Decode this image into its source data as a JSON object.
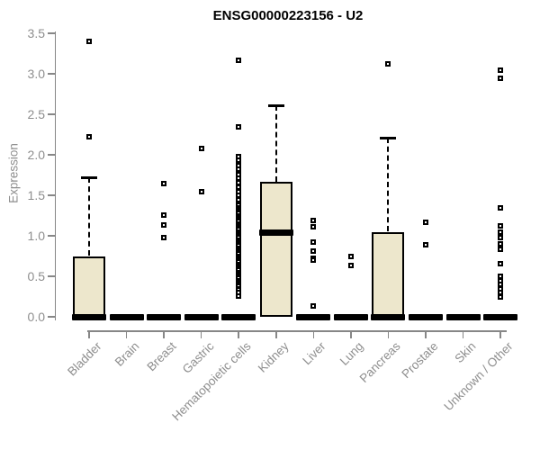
{
  "chart_data": {
    "type": "boxplot",
    "title": "ENSG00000223156 - U2",
    "ylabel": "Expression",
    "xlabel": "",
    "ylim": [
      0.0,
      3.5
    ],
    "yticks": [
      0.0,
      0.5,
      1.0,
      1.5,
      2.0,
      2.5,
      3.0,
      3.5
    ],
    "grid": false,
    "legend": "none",
    "categories": [
      "Bladder",
      "Brain",
      "Breast",
      "Gastric",
      "Hematopoietic cells",
      "Kidney",
      "Liver",
      "Lung",
      "Pancreas",
      "Prostate",
      "Skin",
      "Unknown / Other"
    ],
    "series": [
      {
        "category": "Bladder",
        "q1": 0,
        "median": 0,
        "q3": 0.75,
        "whisker_low": 0,
        "whisker_high": 1.72,
        "outliers": [
          3.4,
          2.22
        ]
      },
      {
        "category": "Brain",
        "q1": 0,
        "median": 0,
        "q3": 0,
        "whisker_low": 0,
        "whisker_high": 0,
        "outliers": []
      },
      {
        "category": "Breast",
        "q1": 0,
        "median": 0,
        "q3": 0,
        "whisker_low": 0,
        "whisker_high": 0,
        "outliers": [
          1.65,
          1.26,
          1.13,
          0.98
        ]
      },
      {
        "category": "Gastric",
        "q1": 0,
        "median": 0,
        "q3": 0,
        "whisker_low": 0,
        "whisker_high": 0,
        "outliers": [
          2.08,
          1.55
        ]
      },
      {
        "category": "Hematopoietic cells",
        "q1": 0,
        "median": 0,
        "q3": 0,
        "whisker_low": 0,
        "whisker_high": 0,
        "outliers": [
          3.17,
          2.35,
          1.98,
          1.93,
          1.87,
          1.82,
          1.76,
          1.71,
          1.66,
          1.6,
          1.55,
          1.5,
          1.45,
          1.4,
          1.375,
          1.35,
          1.325,
          1.3,
          1.275,
          1.25,
          1.225,
          1.2,
          1.175,
          1.15,
          1.125,
          1.1,
          1.075,
          1.05,
          1.025,
          1.0,
          0.975,
          0.95,
          0.925,
          0.9,
          0.875,
          0.85,
          0.825,
          0.8,
          0.775,
          0.75,
          0.725,
          0.7,
          0.675,
          0.65,
          0.625,
          0.6,
          0.575,
          0.55,
          0.525,
          0.5,
          0.475,
          0.45,
          0.425,
          0.4,
          0.375,
          0.35,
          0.33,
          0.3,
          0.26
        ]
      },
      {
        "category": "Kidney",
        "q1": 0,
        "median": 1.04,
        "q3": 1.67,
        "whisker_low": 0,
        "whisker_high": 2.61,
        "outliers": []
      },
      {
        "category": "Liver",
        "q1": 0,
        "median": 0,
        "q3": 0,
        "whisker_low": 0,
        "whisker_high": 0,
        "outliers": [
          1.19,
          1.11,
          0.92,
          0.81,
          0.72,
          0.7,
          0.13
        ]
      },
      {
        "category": "Lung",
        "q1": 0,
        "median": 0,
        "q3": 0,
        "whisker_low": 0,
        "whisker_high": 0,
        "outliers": [
          0.74,
          0.63
        ]
      },
      {
        "category": "Pancreas",
        "q1": 0,
        "median": 0,
        "q3": 1.05,
        "whisker_low": 0,
        "whisker_high": 2.21,
        "outliers": [
          3.12
        ]
      },
      {
        "category": "Prostate",
        "q1": 0,
        "median": 0,
        "q3": 0,
        "whisker_low": 0,
        "whisker_high": 0,
        "outliers": [
          1.17,
          0.89
        ]
      },
      {
        "category": "Skin",
        "q1": 0,
        "median": 0,
        "q3": 0,
        "whisker_low": 0,
        "whisker_high": 0,
        "outliers": []
      },
      {
        "category": "Unknown / Other",
        "q1": 0,
        "median": 0,
        "q3": 0,
        "whisker_low": 0,
        "whisker_high": 0,
        "outliers": [
          3.04,
          2.94,
          1.34,
          1.12,
          1.05,
          0.98,
          0.9,
          0.83,
          0.66,
          0.5,
          0.45,
          0.4,
          0.35,
          0.3,
          0.24
        ]
      }
    ],
    "colors": {
      "box_fill": "#EDE7CC",
      "box_border": "#000000",
      "median": "#000000",
      "outlier": "#000000",
      "axis": "#878787",
      "tick_label": "#8E8E8E",
      "title": "#000000",
      "background": "#FFFFFF"
    }
  }
}
